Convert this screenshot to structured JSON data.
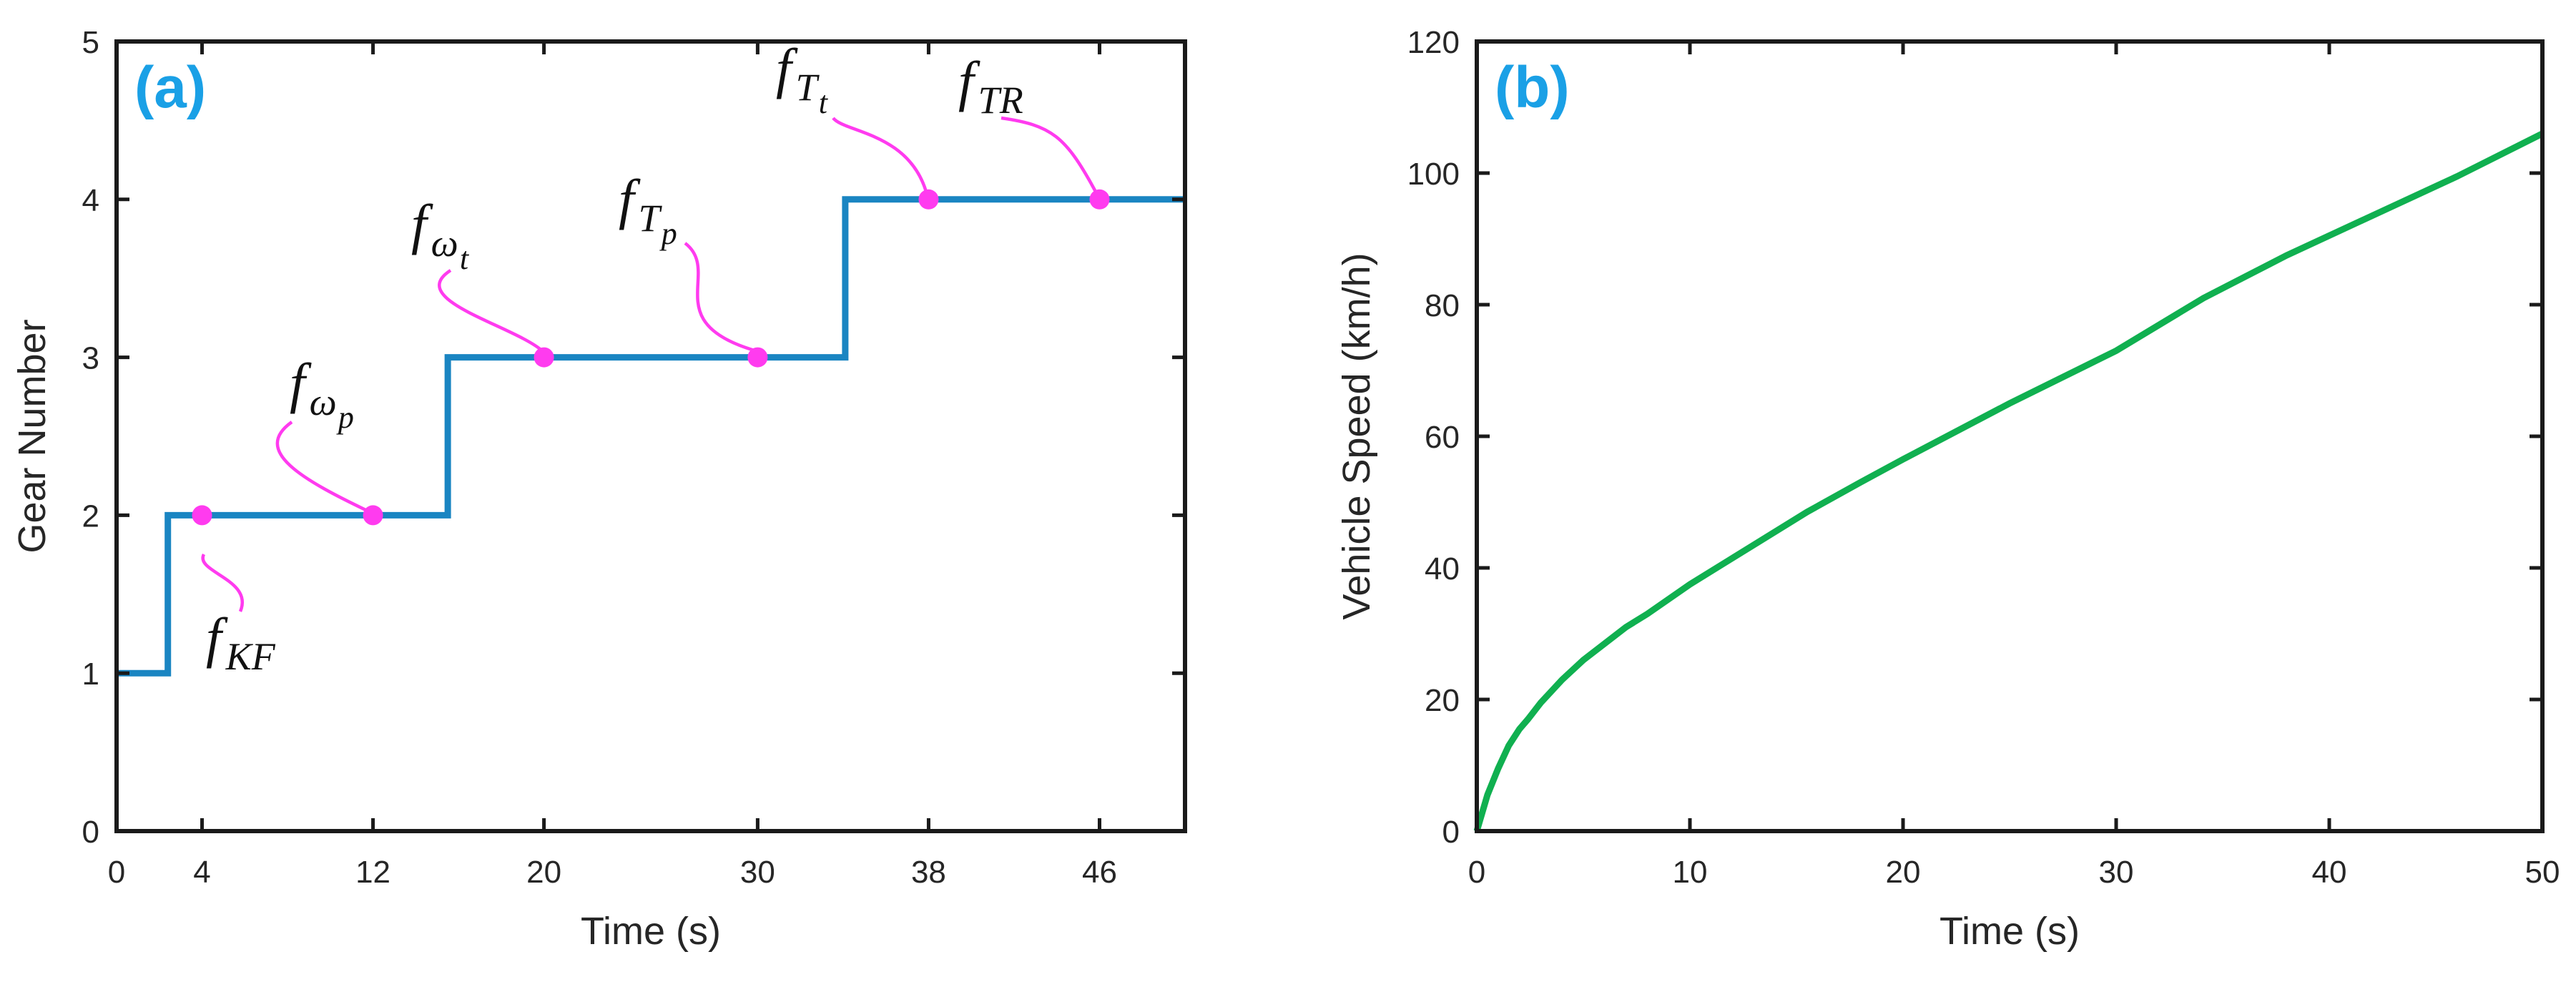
{
  "colors": {
    "gear_line": "#1a85c2",
    "speed_line": "#10b050",
    "marker": "#ff3bef",
    "callout": "#ff3bef",
    "panel_label": "#1aa0e6",
    "axis": "#1a1a1a",
    "text": "#262626"
  },
  "chart_data": [
    {
      "type": "line",
      "panel_label": "(a)",
      "xlabel": "Time (s)",
      "ylabel": "Gear Number",
      "xlim": [
        0,
        50
      ],
      "ylim": [
        0,
        5
      ],
      "xticks": [
        0,
        4,
        12,
        20,
        30,
        38,
        46
      ],
      "yticks": [
        0,
        1,
        2,
        3,
        4,
        5
      ],
      "grid": false,
      "series": [
        {
          "name": "Gear Number",
          "x": [
            0,
            2.4,
            2.4,
            15.5,
            15.5,
            34.1,
            34.1,
            50
          ],
          "y": [
            1,
            1,
            2,
            2,
            3,
            3,
            4,
            4
          ]
        }
      ],
      "markers": [
        {
          "x": 4,
          "y": 2,
          "label": "f",
          "sub": "KF",
          "subsub": ""
        },
        {
          "x": 12,
          "y": 2,
          "label": "f",
          "sub": "ω",
          "subsub": "p"
        },
        {
          "x": 20,
          "y": 3,
          "label": "f",
          "sub": "ω",
          "subsub": "t"
        },
        {
          "x": 30,
          "y": 3,
          "label": "f",
          "sub": "T",
          "subsub": "p"
        },
        {
          "x": 38,
          "y": 4,
          "label": "f",
          "sub": "T",
          "subsub": "t"
        },
        {
          "x": 46,
          "y": 4,
          "label": "f",
          "sub": "TR",
          "subsub": ""
        }
      ]
    },
    {
      "type": "line",
      "panel_label": "(b)",
      "xlabel": "Time (s)",
      "ylabel": "Vehicle Speed (km/h)",
      "xlim": [
        0,
        50
      ],
      "ylim": [
        0,
        120
      ],
      "xticks": [
        0,
        10,
        20,
        30,
        40,
        50
      ],
      "yticks": [
        0,
        20,
        40,
        60,
        80,
        100,
        120
      ],
      "grid": false,
      "series": [
        {
          "name": "Vehicle Speed",
          "x": [
            0,
            0.5,
            1,
            1.5,
            2,
            2.4,
            3,
            4,
            5,
            6,
            7,
            8,
            10,
            12,
            15.5,
            18,
            20,
            25,
            30,
            34.1,
            38,
            42,
            46,
            50
          ],
          "y": [
            0,
            5.5,
            9.5,
            13,
            15.5,
            17,
            19.5,
            23,
            26,
            28.5,
            31,
            33,
            37.5,
            41.5,
            48.5,
            53,
            56.5,
            65,
            73,
            81,
            87.5,
            93.5,
            99.5,
            106
          ]
        }
      ]
    }
  ]
}
